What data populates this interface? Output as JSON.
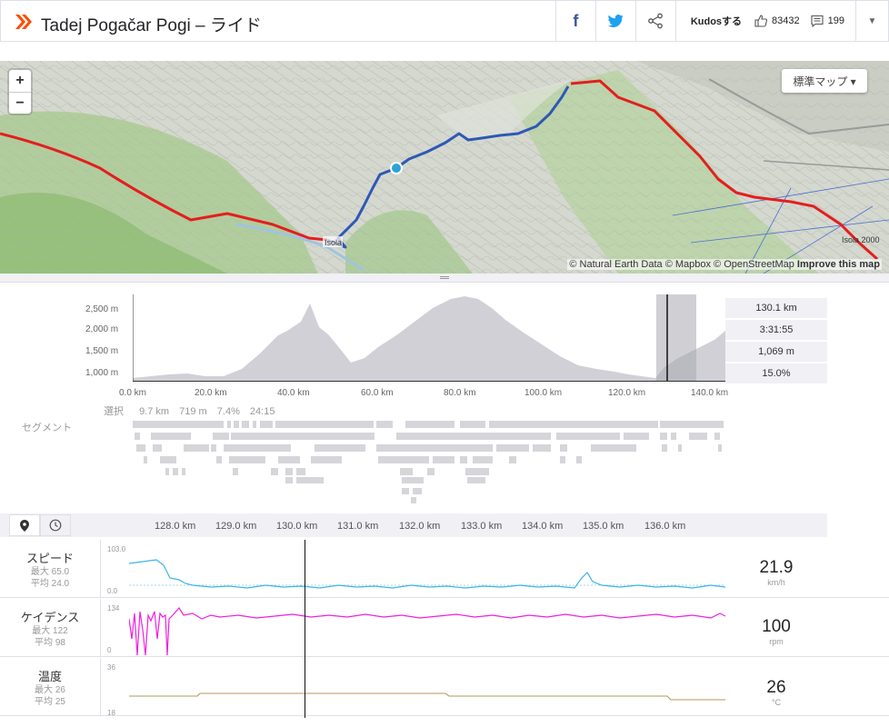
{
  "header": {
    "title": "Tadej Pogačar Pogi – ライド",
    "kudos_label": "Kudosする",
    "kudos_count": "83432",
    "comment_count": "199",
    "brand_color": "#fc4c02"
  },
  "map": {
    "zoom_in": "+",
    "zoom_out": "−",
    "map_type": "標準マップ ▾",
    "attribution": "© Natural Earth Data © Mapbox © OpenStreetMap",
    "improve": "Improve this map",
    "place_labels": [
      "Isola",
      "Isola 2000"
    ]
  },
  "elevation": {
    "y_ticks": [
      "2,500 m",
      "2,000 m",
      "1,500 m",
      "1,000 m"
    ],
    "x_ticks": [
      "0.0 km",
      "20.0 km",
      "40.0 km",
      "60.0 km",
      "80.0 km",
      "100.0 km",
      "120.0 km",
      "140.0 km"
    ],
    "stats": [
      "130.1 km",
      "3:31:55",
      "1,069 m",
      "15.0%"
    ],
    "selection_label": "選択",
    "selection": [
      "9.7 km",
      "719 m",
      "7.4%",
      "24:15"
    ],
    "segments_label": "セグメント"
  },
  "streams": {
    "km_ticks": [
      "128.0 km",
      "129.0 km",
      "130.0 km",
      "131.0 km",
      "132.0 km",
      "133.0 km",
      "134.0 km",
      "135.0 km",
      "136.0 km"
    ],
    "rows": [
      {
        "name": "スピード",
        "max": "最大 65.0",
        "avg": "平均 24.0",
        "value": "21.9",
        "unit": "km/h",
        "ymax": "103.0",
        "ymin": "0.0",
        "color": "#3cb4e5"
      },
      {
        "name": "ケイデンス",
        "max": "最大 122",
        "avg": "平均 98",
        "value": "100",
        "unit": "rpm",
        "ymax": "134",
        "ymin": "0",
        "color": "#f01fe0"
      },
      {
        "name": "温度",
        "max": "最大 26",
        "avg": "平均 25",
        "value": "26",
        "unit": "°C",
        "ymax": "36",
        "ymin": "18",
        "color": "#b39a55"
      }
    ]
  }
}
